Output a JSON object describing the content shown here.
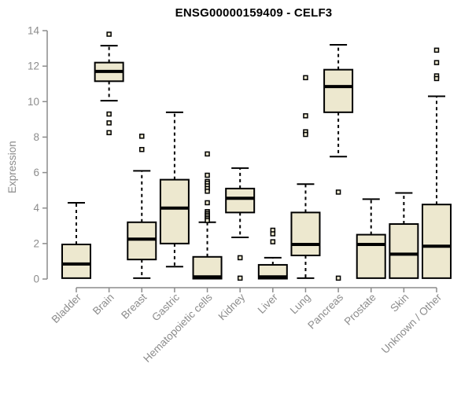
{
  "chart_data": {
    "type": "boxplot",
    "title": "ENSG00000159409 - CELF3",
    "ylabel": "Expression",
    "xlabel": "",
    "ylim": [
      0,
      14
    ],
    "yticks": [
      0,
      2,
      4,
      6,
      8,
      10,
      12,
      14
    ],
    "grid": false,
    "legend": "none",
    "categories": [
      "Bladder",
      "Brain",
      "Breast",
      "Gastric",
      "Hematopoietic cells",
      "Kidney",
      "Liver",
      "Lung",
      "Pancreas",
      "Prostate",
      "Skin",
      "Unknown / Other"
    ],
    "series": [
      {
        "name": "Bladder",
        "low": 0.05,
        "q1": 0.05,
        "median": 0.85,
        "q3": 1.95,
        "high": 4.3,
        "outliers": []
      },
      {
        "name": "Brain",
        "low": 10.05,
        "q1": 11.15,
        "median": 11.7,
        "q3": 12.2,
        "high": 13.15,
        "outliers": [
          13.8,
          9.3,
          8.8,
          8.25
        ]
      },
      {
        "name": "Breast",
        "low": 0.05,
        "q1": 1.1,
        "median": 2.25,
        "q3": 3.2,
        "high": 6.1,
        "outliers": [
          8.05,
          7.3
        ]
      },
      {
        "name": "Gastric",
        "low": 0.7,
        "q1": 2.0,
        "median": 4.0,
        "q3": 5.6,
        "high": 9.4,
        "outliers": []
      },
      {
        "name": "Hematopoietic cells",
        "low": 0.02,
        "q1": 0.02,
        "median": 0.12,
        "q3": 1.25,
        "high": 3.2,
        "outliers": [
          7.05,
          5.85,
          5.5,
          5.4,
          5.25,
          5.1,
          4.95,
          4.3,
          3.8,
          3.7,
          3.6,
          3.5,
          3.4,
          3.3
        ]
      },
      {
        "name": "Kidney",
        "low": 2.35,
        "q1": 3.75,
        "median": 4.55,
        "q3": 5.1,
        "high": 6.25,
        "outliers": [
          1.2,
          0.05
        ]
      },
      {
        "name": "Liver",
        "low": 0.02,
        "q1": 0.02,
        "median": 0.12,
        "q3": 0.8,
        "high": 1.2,
        "outliers": [
          2.75,
          2.55,
          2.1
        ]
      },
      {
        "name": "Lung",
        "low": 0.05,
        "q1": 1.33,
        "median": 1.95,
        "q3": 3.75,
        "high": 5.35,
        "outliers": [
          11.35,
          9.2,
          8.3,
          8.15
        ]
      },
      {
        "name": "Pancreas",
        "low": 6.9,
        "q1": 9.4,
        "median": 10.85,
        "q3": 11.8,
        "high": 13.2,
        "outliers": [
          4.9,
          0.05
        ]
      },
      {
        "name": "Prostate",
        "low": 0.05,
        "q1": 0.05,
        "median": 1.95,
        "q3": 2.5,
        "high": 4.5,
        "outliers": []
      },
      {
        "name": "Skin",
        "low": 0.05,
        "q1": 0.05,
        "median": 1.4,
        "q3": 3.1,
        "high": 4.85,
        "outliers": []
      },
      {
        "name": "Unknown / Other",
        "low": 0.05,
        "q1": 0.05,
        "median": 1.85,
        "q3": 4.2,
        "high": 10.3,
        "outliers": [
          12.9,
          12.2,
          11.45,
          11.3
        ]
      }
    ],
    "colors": {
      "box_fill": "#EDE8CF",
      "box_border": "#000000",
      "median": "#000000",
      "whisker": "#000000",
      "outlier_border": "#000000",
      "axis": "#8C8C8C",
      "tick_label": "#8C8C8C",
      "title": "#000000",
      "background": "#FFFFFF"
    }
  }
}
